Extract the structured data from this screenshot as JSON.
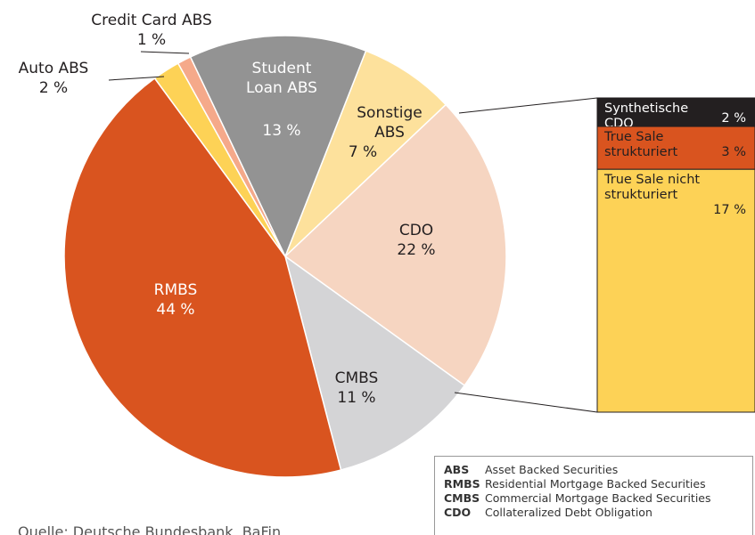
{
  "chart_data": {
    "type": "pie",
    "categories": [
      "Sonstige ABS",
      "CDO",
      "CMBS",
      "RMBS",
      "Auto ABS",
      "Credit Card ABS",
      "Student Loan ABS"
    ],
    "values": [
      7,
      22,
      11,
      44,
      2,
      1,
      13
    ],
    "value_labels": [
      "7 %",
      "22 %",
      "11 %",
      "44 %",
      "2 %",
      "1 %",
      "13 %"
    ],
    "colors": [
      "#fde19c",
      "#f6d5c1",
      "#d4d4d6",
      "#d9541f",
      "#fdd256",
      "#f5a98a",
      "#939393"
    ],
    "breakdown": {
      "of": "CDO",
      "items": [
        {
          "name": "Synthetische CDO",
          "value": 2,
          "value_label": "2 %",
          "color": "#231f20"
        },
        {
          "name": "True Sale strukturiert",
          "value": 3,
          "value_label": "3 %",
          "color": "#d9541f"
        },
        {
          "name": "True Sale nicht strukturiert",
          "value": 17,
          "value_label": "17 %",
          "color": "#fdd256"
        }
      ]
    },
    "legend": [
      {
        "abbr": "ABS",
        "text": "Asset Backed Securities"
      },
      {
        "abbr": "RMBS",
        "text": "Residential Mortgage Backed Securities"
      },
      {
        "abbr": "CMBS",
        "text": "Commercial Mortgage Backed Securities"
      },
      {
        "abbr": "CDO",
        "text": "Collateralized Debt Obligation"
      }
    ],
    "source": "Quelle: Deutsche Bundesbank, BaFin"
  }
}
